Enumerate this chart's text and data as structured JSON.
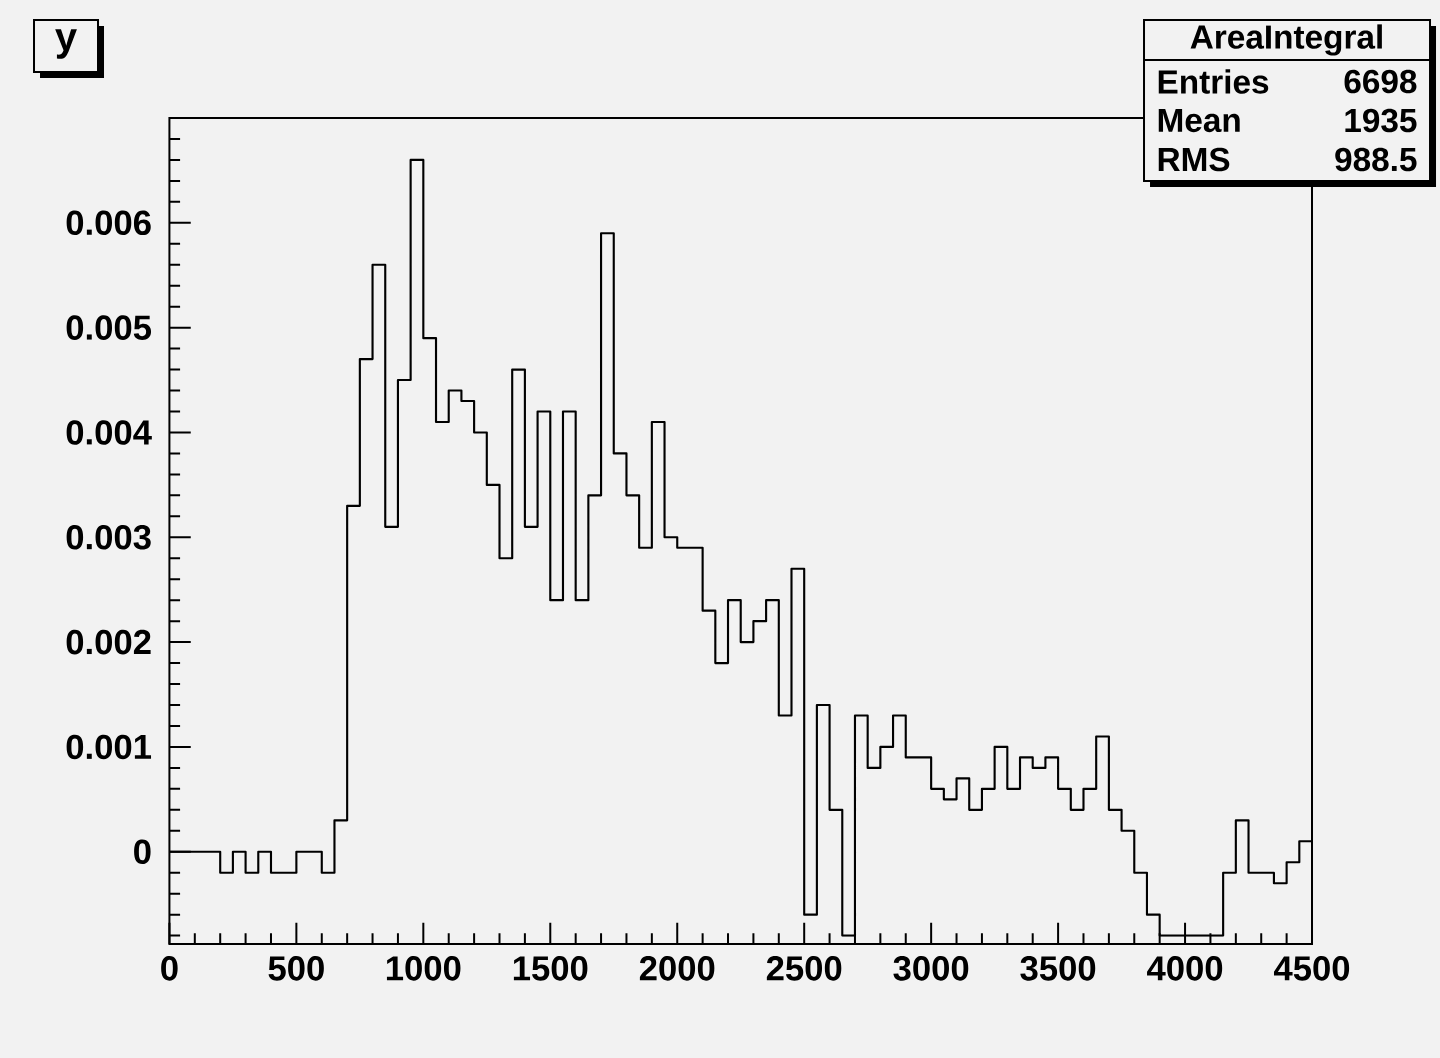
{
  "chart_data": {
    "type": "histogram",
    "title": "y",
    "annotations": [
      "AreaIntegral",
      "Entries",
      "6698",
      "Mean",
      "1935",
      "RMS",
      "988.5"
    ],
    "bins": [
      0,
      50,
      100,
      150,
      200,
      250,
      300,
      350,
      400,
      450,
      500,
      550,
      600,
      650,
      700,
      750,
      800,
      850,
      900,
      950,
      1000,
      1050,
      1100,
      1150,
      1200,
      1250,
      1300,
      1350,
      1400,
      1450,
      1500,
      1550,
      1600,
      1650,
      1700,
      1750,
      1800,
      1850,
      1900,
      1950,
      2000,
      2050,
      2100,
      2150,
      2200,
      2250,
      2300,
      2350,
      2400,
      2450,
      2500,
      2550,
      2600,
      2650,
      2700,
      2750,
      2800,
      2850,
      2900,
      2950,
      3000,
      3050,
      3100,
      3150,
      3200,
      3250,
      3300,
      3350,
      3400,
      3450,
      3500,
      3550,
      3600,
      3650,
      3700,
      3750,
      3800,
      3850,
      3900,
      3950,
      4000,
      4050,
      4100,
      4150,
      4200,
      4250,
      4300,
      4350,
      4400,
      4450,
      4500
    ],
    "values": [
      0,
      0,
      0,
      0,
      -0.0002,
      0,
      -0.0002,
      0,
      -0.0002,
      -0.0002,
      0,
      0,
      -0.0002,
      0.0003,
      0.0033,
      0.0047,
      0.0056,
      0.0031,
      0.0045,
      0.0066,
      0.0049,
      0.0041,
      0.0044,
      0.0043,
      0.004,
      0.0035,
      0.0028,
      0.0046,
      0.0031,
      0.0042,
      0.0024,
      0.0042,
      0.0024,
      0.0034,
      0.0059,
      0.0038,
      0.0034,
      0.0029,
      0.0041,
      0.003,
      0.0029,
      0.0029,
      0.0023,
      0.0018,
      0.0024,
      0.002,
      0.0022,
      0.0024,
      0.0013,
      0.0027,
      -0.0006,
      0.0014,
      0.0004,
      -0.0008,
      0.0013,
      0.0008,
      0.001,
      0.0013,
      0.0009,
      0.0009,
      0.0006,
      0.0005,
      0.0007,
      0.0004,
      0.0006,
      0.001,
      0.0006,
      0.0009,
      0.0008,
      0.0009,
      0.0006,
      0.0004,
      0.0006,
      0.0011,
      0.0004,
      0.0002,
      -0.0002,
      -0.0006,
      -0.0008,
      -0.0008,
      -0.0008,
      -0.0008,
      -0.0008,
      -0.0002,
      0.0003,
      -0.0002,
      -0.0002,
      -0.0003,
      -0.0001,
      0.0001
    ],
    "color": "#000000",
    "xlim": [
      0,
      4500
    ],
    "ylim": [
      -0.00088,
      0.007
    ],
    "xticks": [
      0,
      500,
      1000,
      1500,
      2000,
      2500,
      3000,
      3500,
      4000,
      4500
    ],
    "yticks": [
      0,
      0.001,
      0.002,
      0.003,
      0.004,
      0.005,
      0.006
    ]
  }
}
